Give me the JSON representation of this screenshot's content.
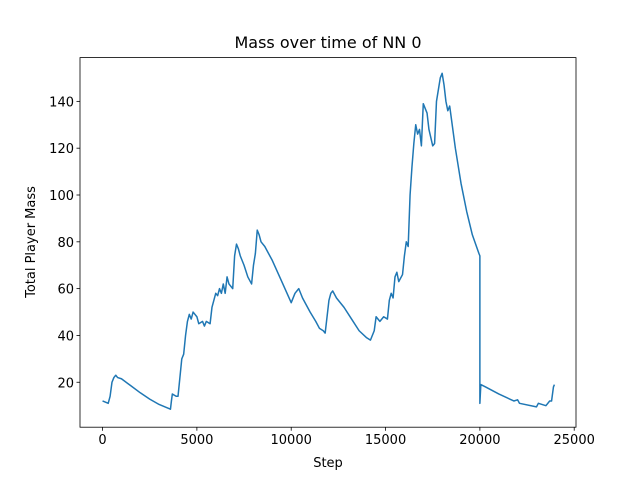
{
  "chart_data": {
    "type": "line",
    "title": "Mass over time of NN 0",
    "x_label": "Step",
    "y_label": "Total Player Mass",
    "color": "#1f77b4",
    "x": [
      0,
      300,
      400,
      500,
      600,
      700,
      800,
      1000,
      1500,
      2000,
      2500,
      3000,
      3600,
      3650,
      3700,
      3900,
      4000,
      4100,
      4200,
      4300,
      4400,
      4500,
      4600,
      4700,
      4800,
      5000,
      5100,
      5300,
      5400,
      5500,
      5700,
      5800,
      5900,
      6000,
      6100,
      6200,
      6300,
      6400,
      6500,
      6600,
      6700,
      6900,
      7000,
      7100,
      7200,
      7300,
      7500,
      7700,
      7900,
      8000,
      8100,
      8200,
      8300,
      8400,
      8600,
      9000,
      9500,
      10000,
      10200,
      10400,
      10600,
      11000,
      11300,
      11500,
      11700,
      11800,
      11900,
      12000,
      12100,
      12200,
      12400,
      12800,
      13200,
      13600,
      14000,
      14200,
      14400,
      14500,
      14700,
      14900,
      15100,
      15200,
      15300,
      15400,
      15500,
      15600,
      15700,
      15900,
      16000,
      16100,
      16200,
      16300,
      16400,
      16500,
      16600,
      16700,
      16800,
      16900,
      17000,
      17200,
      17300,
      17500,
      17600,
      17700,
      17900,
      18000,
      18100,
      18200,
      18300,
      18400,
      18500,
      18700,
      19000,
      19300,
      19600,
      19950,
      20000,
      20000,
      20050,
      20300,
      21000,
      21800,
      22000,
      22100,
      23000,
      23100,
      23500,
      23700,
      23800,
      23900,
      23950
    ],
    "values": [
      12,
      11,
      14,
      20,
      22,
      23,
      22,
      21.5,
      18.5,
      15.5,
      12.8,
      10.5,
      8.5,
      12,
      15,
      14,
      14,
      22,
      30,
      32,
      40,
      46,
      49,
      47,
      50,
      48,
      45,
      46,
      44,
      46,
      45,
      52,
      55,
      58,
      57,
      60,
      58,
      62,
      58,
      65,
      62,
      60,
      74,
      79,
      77,
      74,
      70,
      65,
      62,
      70,
      75,
      85,
      83,
      80,
      78,
      72,
      63,
      54,
      58,
      60,
      56,
      50,
      46,
      43,
      42,
      41,
      48,
      55,
      58,
      59,
      56,
      52,
      47,
      42,
      39,
      38,
      42,
      48,
      46,
      48,
      47,
      55,
      58,
      56,
      65,
      67,
      63,
      66,
      74,
      80,
      78,
      100,
      112,
      122,
      130,
      126,
      128,
      121,
      139,
      135,
      128,
      121,
      122,
      140,
      150,
      152,
      147,
      140,
      136,
      138,
      132,
      120,
      105,
      93,
      83,
      75,
      74,
      11,
      19,
      18,
      15,
      12,
      12.5,
      11,
      9.5,
      11,
      10,
      12,
      12,
      18,
      19
    ],
    "xlim": [
      -1195,
      25095
    ],
    "ylim": [
      0.8,
      158.7
    ],
    "xticks": [
      0,
      5000,
      10000,
      15000,
      20000,
      25000
    ],
    "yticks": [
      20,
      40,
      60,
      80,
      100,
      120,
      140
    ]
  }
}
